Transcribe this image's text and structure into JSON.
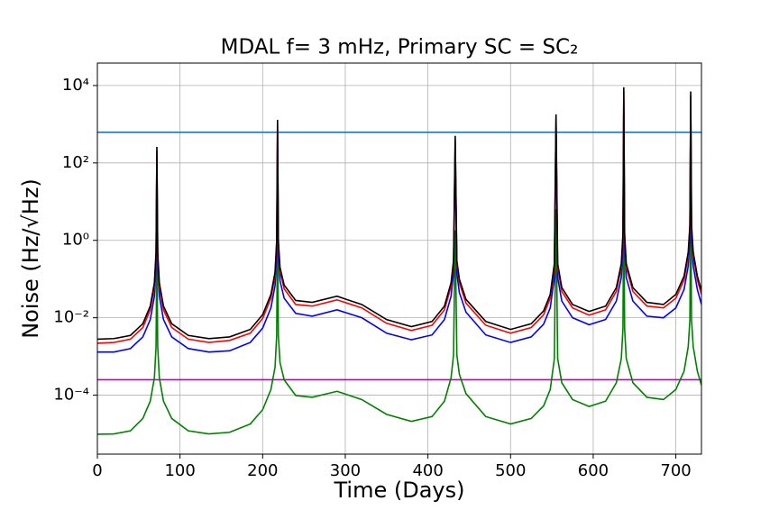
{
  "chart_data": {
    "type": "line",
    "title": "MDAL f= 3 mHz, Primary SC = SC₂",
    "x_label": "Time (Days)",
    "y_label": "Noise (Hz/√Hz)",
    "log_y": true,
    "grid": true,
    "xlim": [
      0,
      731
    ],
    "ylim": [
      3e-06,
      38000
    ],
    "xticks": [
      0,
      100,
      200,
      300,
      400,
      500,
      600,
      700
    ],
    "yticks": [
      {
        "value": 0.0001,
        "label": "10⁻⁴"
      },
      {
        "value": 0.01,
        "label": "10⁻²"
      },
      {
        "value": 1,
        "label": "10⁰"
      },
      {
        "value": 100,
        "label": "10²"
      },
      {
        "value": 10000,
        "label": "10⁴"
      }
    ],
    "hlines": [
      {
        "color": "#1f77b4",
        "value": 620
      },
      {
        "color": "#bf00bf",
        "value": 0.00025
      }
    ],
    "x": [
      0,
      20,
      40,
      55,
      64,
      69,
      71,
      72,
      73,
      75,
      80,
      90,
      110,
      135,
      160,
      185,
      200,
      210,
      215,
      217,
      218,
      219,
      221,
      226,
      240,
      260,
      290,
      320,
      350,
      380,
      405,
      420,
      428,
      431,
      433,
      435,
      438,
      446,
      470,
      500,
      525,
      540,
      548,
      553,
      555,
      557,
      562,
      575,
      595,
      615,
      628,
      634,
      636,
      637,
      638,
      640,
      648,
      665,
      685,
      700,
      710,
      715,
      717,
      718,
      719,
      721,
      726,
      731
    ],
    "series": [
      {
        "color": "#008000",
        "values": [
          9.8e-06,
          1e-05,
          1.2e-05,
          2.5e-05,
          7e-05,
          0.00028,
          0.0018,
          0.9,
          0.0018,
          0.00028,
          7e-05,
          2.5e-05,
          1.2e-05,
          1e-05,
          1.1e-05,
          1.8e-05,
          4.2e-05,
          0.00014,
          0.00053,
          0.0035,
          4.6,
          0.0035,
          0.0007,
          0.00025,
          9.8e-05,
          8.8e-05,
          0.000126,
          7.7e-05,
          3.2e-05,
          2.1e-05,
          2.8e-05,
          7e-05,
          0.00028,
          0.0011,
          1.8,
          0.0011,
          0.00035,
          0.00011,
          2.8e-05,
          1.8e-05,
          2.5e-05,
          5.3e-05,
          0.00014,
          0.00088,
          6.3,
          0.00088,
          0.00021,
          7.7e-05,
          5.1e-05,
          7e-05,
          0.00021,
          0.00088,
          0.0053,
          32,
          0.0053,
          0.00088,
          0.00021,
          8.8e-05,
          7.7e-05,
          0.00014,
          0.00042,
          0.0018,
          0.0088,
          25,
          0.0088,
          0.0018,
          0.00042,
          0.00018
        ]
      },
      {
        "color": "#0000ff",
        "values": [
          0.0013,
          0.0013,
          0.0016,
          0.0032,
          0.009,
          0.036,
          0.22,
          120,
          0.22,
          0.036,
          0.009,
          0.0032,
          0.0016,
          0.0013,
          0.0014,
          0.0023,
          0.0054,
          0.018,
          0.068,
          0.45,
          590,
          0.45,
          0.09,
          0.032,
          0.013,
          0.011,
          0.016,
          0.01,
          0.004,
          0.0027,
          0.0036,
          0.009,
          0.036,
          0.14,
          230,
          0.14,
          0.045,
          0.014,
          0.0036,
          0.0023,
          0.0032,
          0.0068,
          0.018,
          0.11,
          810,
          0.11,
          0.027,
          0.01,
          0.0066,
          0.009,
          0.027,
          0.11,
          0.68,
          4000,
          0.68,
          0.11,
          0.027,
          0.011,
          0.01,
          0.018,
          0.054,
          0.22,
          1.1,
          3200,
          1.1,
          0.22,
          0.054,
          0.022
        ]
      },
      {
        "color": "#ff0000",
        "values": [
          0.0022,
          0.0023,
          0.0028,
          0.0056,
          0.016,
          0.064,
          0.4,
          210,
          0.4,
          0.064,
          0.016,
          0.0056,
          0.0028,
          0.0023,
          0.0026,
          0.004,
          0.0096,
          0.032,
          0.12,
          0.8,
          1000,
          0.8,
          0.16,
          0.056,
          0.022,
          0.02,
          0.029,
          0.018,
          0.0072,
          0.0047,
          0.0064,
          0.016,
          0.064,
          0.24,
          400,
          0.24,
          0.08,
          0.024,
          0.0064,
          0.004,
          0.0056,
          0.012,
          0.032,
          0.2,
          1400,
          0.2,
          0.048,
          0.018,
          0.0117,
          0.016,
          0.048,
          0.2,
          1.2,
          7000,
          1.2,
          0.2,
          0.048,
          0.02,
          0.018,
          0.032,
          0.096,
          0.4,
          2,
          5600,
          2,
          0.4,
          0.096,
          0.04
        ]
      },
      {
        "color": "#000000",
        "values": [
          0.0028,
          0.0029,
          0.0035,
          0.007,
          0.02,
          0.08,
          0.5,
          260,
          0.5,
          0.08,
          0.02,
          0.007,
          0.0035,
          0.0029,
          0.0032,
          0.005,
          0.012,
          0.04,
          0.15,
          1.0,
          1300,
          1.0,
          0.2,
          0.07,
          0.028,
          0.025,
          0.036,
          0.022,
          0.009,
          0.0059,
          0.008,
          0.02,
          0.08,
          0.3,
          500,
          0.3,
          0.1,
          0.03,
          0.008,
          0.005,
          0.007,
          0.015,
          0.04,
          0.25,
          1800,
          0.25,
          0.06,
          0.022,
          0.0146,
          0.02,
          0.06,
          0.25,
          1.5,
          9000,
          1.5,
          0.25,
          0.06,
          0.025,
          0.022,
          0.04,
          0.12,
          0.5,
          2.5,
          7000,
          2.5,
          0.5,
          0.12,
          0.05
        ]
      }
    ]
  }
}
